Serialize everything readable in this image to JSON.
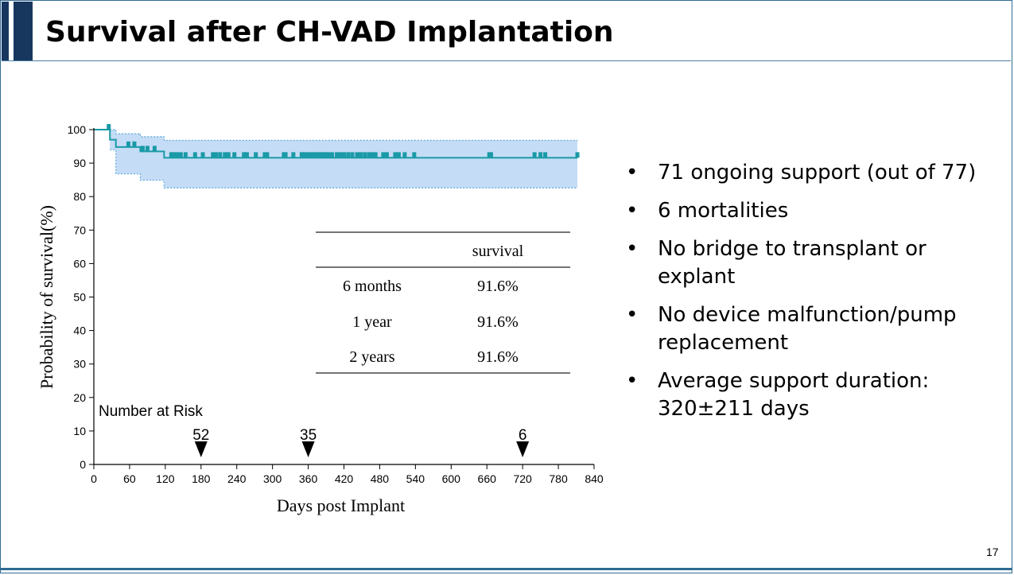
{
  "slide": {
    "title": "Survival after CH-VAD Implantation",
    "page_number": "17"
  },
  "colors": {
    "title_bar": "#17375e",
    "survival_line": "#1a9aa6",
    "ci_fill": "#c5dcf6",
    "ci_border": "#5aa7d8",
    "axis": "#000000"
  },
  "bullets": [
    {
      "marker": "•",
      "text": "71 ongoing support (out of 77)"
    },
    {
      "marker": "•",
      "text": "6 mortalities"
    },
    {
      "marker": "•",
      "text": "No bridge to transplant or explant"
    },
    {
      "marker": "•",
      "text": "No device malfunction/pump replacement"
    },
    {
      "marker": "•",
      "text": "Average support duration: 320±211 days"
    }
  ],
  "chart_data": {
    "type": "line",
    "xlabel": "Days post Implant",
    "ylabel": "Probability of survival(%)",
    "xlim": [
      0,
      840
    ],
    "ylim": [
      0,
      100
    ],
    "x_ticks": [
      0,
      60,
      120,
      180,
      240,
      300,
      360,
      420,
      480,
      540,
      600,
      660,
      720,
      780,
      840
    ],
    "y_ticks": [
      0,
      10,
      20,
      30,
      40,
      50,
      60,
      70,
      80,
      90,
      100
    ],
    "grid": false,
    "series": [
      {
        "kind": "survival-step",
        "points": [
          [
            0,
            100
          ],
          [
            27,
            100
          ],
          [
            27,
            97
          ],
          [
            37,
            97
          ],
          [
            37,
            94.8
          ],
          [
            78,
            94.8
          ],
          [
            78,
            93.5
          ],
          [
            118,
            93.5
          ],
          [
            118,
            91.6
          ],
          [
            812,
            91.6
          ]
        ],
        "ci_upper": [
          [
            27,
            100
          ],
          [
            37,
            100
          ],
          [
            37,
            98.8
          ],
          [
            78,
            98.8
          ],
          [
            78,
            97.9
          ],
          [
            118,
            97.9
          ],
          [
            118,
            96.8
          ],
          [
            812,
            96.8
          ]
        ],
        "ci_lower": [
          [
            27,
            94
          ],
          [
            37,
            94
          ],
          [
            37,
            86.8
          ],
          [
            78,
            86.8
          ],
          [
            78,
            84.9
          ],
          [
            118,
            84.9
          ],
          [
            118,
            82.6
          ],
          [
            812,
            82.6
          ]
        ],
        "censored_times": [
          25,
          58,
          68,
          82,
          90,
          102,
          130,
          134,
          140,
          146,
          154,
          170,
          183,
          200,
          205,
          212,
          220,
          226,
          236,
          252,
          257,
          272,
          287,
          291,
          319,
          322,
          335,
          349,
          352,
          358,
          364,
          369,
          374,
          379,
          384,
          389,
          394,
          400,
          408,
          414,
          420,
          427,
          434,
          442,
          448,
          455,
          462,
          468,
          473,
          486,
          492,
          506,
          512,
          522,
          538,
          664,
          667,
          740,
          750,
          758,
          812
        ]
      }
    ],
    "risk_table": {
      "label": "Number at Risk",
      "markers": [
        {
          "day": 180,
          "count": "52"
        },
        {
          "day": 360,
          "count": "35"
        },
        {
          "day": 720,
          "count": "6"
        }
      ]
    },
    "survival_table": {
      "header": [
        "",
        "survival"
      ],
      "rows": [
        [
          "6 months",
          "91.6%"
        ],
        [
          "1 year",
          "91.6%"
        ],
        [
          "2 years",
          "91.6%"
        ]
      ]
    }
  }
}
